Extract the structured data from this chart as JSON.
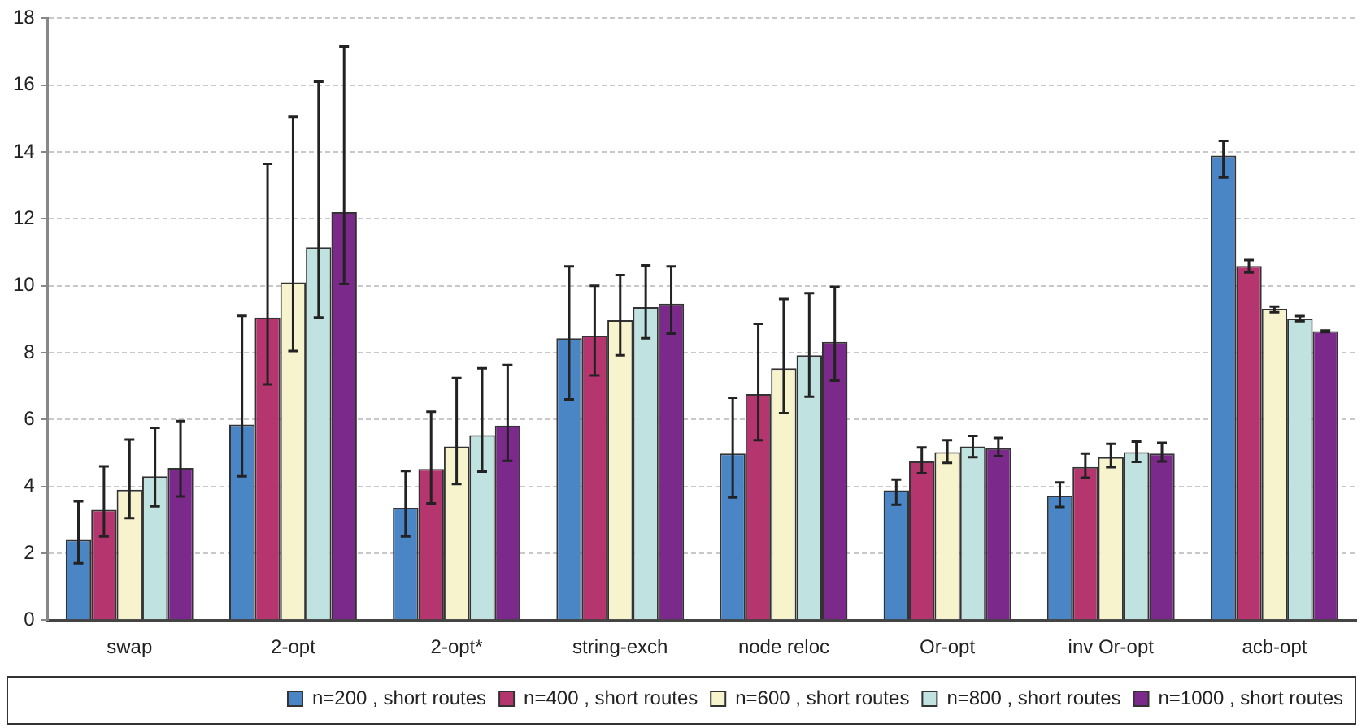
{
  "chart_data": {
    "type": "bar",
    "categories": [
      "swap",
      "2-opt",
      "2-opt*",
      "string-exch",
      "node reloc",
      "Or-opt",
      "inv Or-opt",
      "acb-opt"
    ],
    "series": [
      {
        "name": "n=200 , short routes",
        "color": "#4a86c5",
        "values": [
          2.4,
          5.85,
          3.36,
          8.43,
          4.98,
          3.88,
          3.72,
          13.89
        ],
        "errors": [
          [
            1.7,
            3.55
          ],
          [
            4.3,
            9.1
          ],
          [
            2.5,
            4.46
          ],
          [
            6.6,
            10.58
          ],
          [
            3.67,
            6.65
          ],
          [
            3.45,
            4.2
          ],
          [
            3.38,
            4.12
          ],
          [
            13.24,
            14.33
          ]
        ]
      },
      {
        "name": "n=400 , short routes",
        "color": "#b5366f",
        "values": [
          3.3,
          9.05,
          4.52,
          8.51,
          6.76,
          4.74,
          4.58,
          10.59
        ],
        "errors": [
          [
            2.5,
            4.6
          ],
          [
            7.05,
            13.65
          ],
          [
            3.49,
            6.23
          ],
          [
            7.32,
            10.0
          ],
          [
            5.38,
            8.86
          ],
          [
            4.39,
            5.16
          ],
          [
            4.26,
            4.98
          ],
          [
            10.4,
            10.77
          ]
        ]
      },
      {
        "name": "n=600 , short routes",
        "color": "#f7f3cc",
        "values": [
          3.9,
          10.1,
          5.19,
          8.97,
          7.53,
          5.02,
          4.87,
          9.31
        ],
        "errors": [
          [
            3.05,
            5.4
          ],
          [
            8.05,
            15.05
          ],
          [
            4.07,
            7.24
          ],
          [
            7.92,
            10.32
          ],
          [
            6.19,
            9.6
          ],
          [
            4.7,
            5.38
          ],
          [
            4.57,
            5.27
          ],
          [
            9.21,
            9.38
          ]
        ]
      },
      {
        "name": "n=800 , short routes",
        "color": "#c0e2e0",
        "values": [
          4.3,
          11.15,
          5.53,
          9.36,
          7.92,
          5.19,
          5.02,
          9.02
        ],
        "errors": [
          [
            3.4,
            5.75
          ],
          [
            9.05,
            16.1
          ],
          [
            4.44,
            7.53
          ],
          [
            8.43,
            10.61
          ],
          [
            6.68,
            9.78
          ],
          [
            4.87,
            5.51
          ],
          [
            4.73,
            5.34
          ],
          [
            8.94,
            9.09
          ]
        ]
      },
      {
        "name": "n=1000 , short routes",
        "color": "#7b2a8b",
        "values": [
          4.55,
          12.2,
          5.82,
          9.46,
          8.32,
          5.14,
          4.98,
          8.64
        ],
        "errors": [
          [
            3.7,
            5.95
          ],
          [
            10.05,
            17.15
          ],
          [
            4.76,
            7.63
          ],
          [
            8.57,
            10.58
          ],
          [
            7.16,
            9.97
          ],
          [
            4.9,
            5.45
          ],
          [
            4.74,
            5.3
          ],
          [
            8.61,
            8.66
          ]
        ]
      }
    ],
    "ylim": [
      0,
      18
    ],
    "yticks": [
      0,
      2,
      4,
      6,
      8,
      10,
      12,
      14,
      16,
      18
    ],
    "grid": "y",
    "legend": "bottom"
  }
}
